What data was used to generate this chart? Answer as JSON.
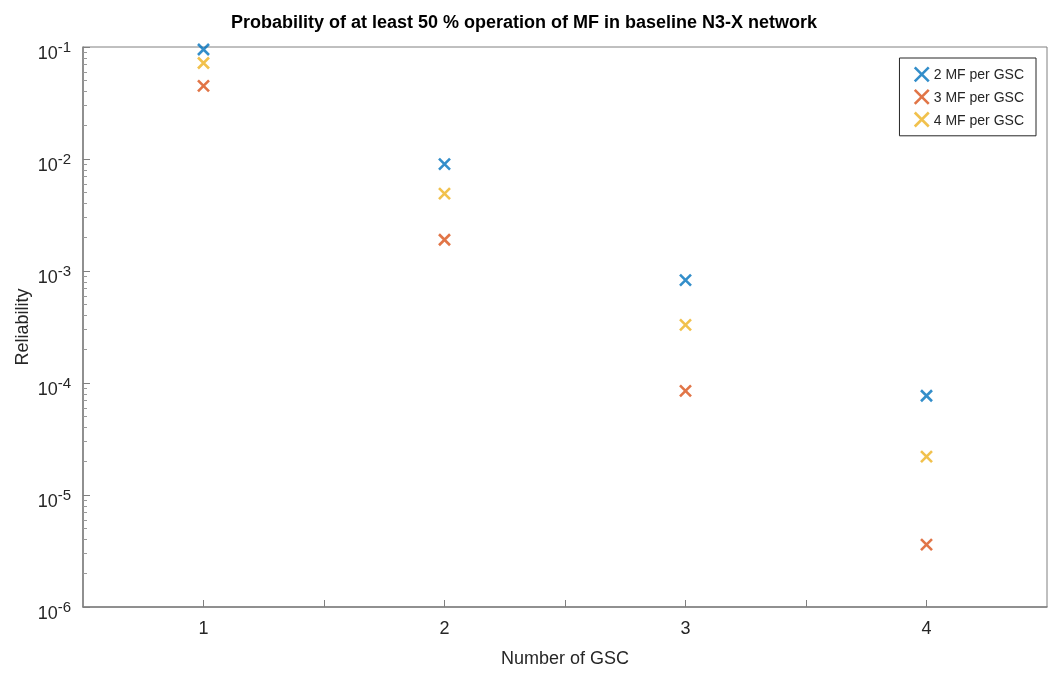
{
  "chart_data": {
    "type": "scatter",
    "title": "Probability of at least 50 % operation of MF in baseline N3-X network",
    "xlabel": "Number of GSC",
    "ylabel": "Reliability",
    "x": [
      1,
      2,
      3,
      4
    ],
    "series": [
      {
        "name": "2 MF per GSC",
        "color": "#0072bd",
        "values": [
          0.095,
          0.009,
          0.00083,
          7.7e-05
        ]
      },
      {
        "name": "3 MF per GSC",
        "color": "#d95319",
        "values": [
          0.045,
          0.0019,
          8.5e-05,
          3.6e-06
        ]
      },
      {
        "name": "4 MF per GSC",
        "color": "#edb120",
        "values": [
          0.072,
          0.0049,
          0.00033,
          2.2e-05
        ]
      }
    ],
    "log": "y",
    "marker": "cross",
    "grid": false,
    "legend": "top right",
    "xlim": [
      0.5,
      4.5
    ],
    "xticks": [
      1,
      {
        "value": 1.5,
        "label": null
      },
      2,
      {
        "value": 2.5,
        "label": null
      },
      3,
      {
        "value": 3.5,
        "label": null
      },
      4
    ],
    "ylim": [
      1e-06,
      0.1
    ],
    "yticks": [
      {
        "value": 1e-06,
        "label": "10$^{-6}$"
      },
      {
        "value": 1e-05,
        "label": "10$^{-5}$"
      },
      {
        "value": 0.0001,
        "label": "10$^{-4}$"
      },
      {
        "value": 0.001,
        "label": "10$^{-3}$"
      },
      {
        "value": 0.01,
        "label": "10$^{-2}$"
      },
      {
        "value": 0.1,
        "label": "10$^{-1}$"
      }
    ]
  }
}
